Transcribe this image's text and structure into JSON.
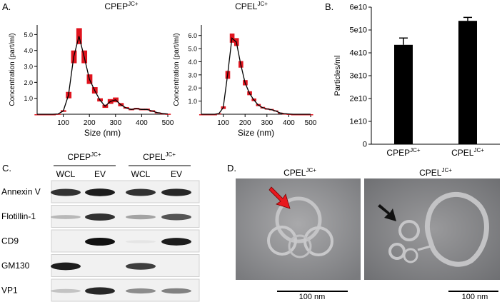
{
  "panel_labels": [
    "A.",
    "B.",
    "C.",
    "D."
  ],
  "chart_data": [
    {
      "type": "line",
      "title": "CPEP",
      "title_superscript": "JC+",
      "x_label": "Size (nm)",
      "y_label": "Concentration (part/ml)",
      "x": [
        0,
        20,
        40,
        60,
        80,
        100,
        120,
        140,
        160,
        180,
        200,
        220,
        240,
        260,
        280,
        300,
        320,
        340,
        360,
        380,
        400,
        420,
        440,
        460,
        480,
        500
      ],
      "values": [
        0,
        0,
        0,
        0,
        0.02,
        0.2,
        1.2,
        3.6,
        4.9,
        3.6,
        2.2,
        1.5,
        0.9,
        0.5,
        0.8,
        0.9,
        0.6,
        0.4,
        0.3,
        0.35,
        0.3,
        0.3,
        0.2,
        0.1,
        0.05,
        0.02
      ],
      "errors": [
        0,
        0,
        0,
        0,
        0.01,
        0.05,
        0.2,
        0.4,
        0.5,
        0.4,
        0.3,
        0.2,
        0.1,
        0.1,
        0.15,
        0.15,
        0.1,
        0.05,
        0.05,
        0.05,
        0.05,
        0.05,
        0.05,
        0.02,
        0.01,
        0.01
      ],
      "color": "#000000",
      "error_color": "#e0141e",
      "xlim": [
        0,
        500
      ],
      "xticks": [
        100,
        200,
        300,
        400,
        500
      ],
      "ylim": [
        0,
        5.6
      ],
      "yticks": [
        {
          "value": 1,
          "label": "1.0"
        },
        {
          "value": 2,
          "label": "2.0"
        },
        {
          "value": 3,
          "label": "3.0"
        },
        {
          "value": 4,
          "label": "4.0"
        },
        {
          "value": 5,
          "label": "5.0"
        }
      ]
    },
    {
      "type": "line",
      "title": "CPEL",
      "title_superscript": "JC+",
      "x_label": "Size (nm)",
      "y_label": "Concentration (part/ml)",
      "x": [
        0,
        20,
        40,
        60,
        80,
        100,
        120,
        140,
        160,
        180,
        200,
        220,
        240,
        260,
        280,
        300,
        320,
        340,
        360,
        380,
        400,
        420,
        440,
        460,
        480,
        500
      ],
      "values": [
        0,
        0,
        0,
        0,
        0.05,
        0.5,
        3.0,
        5.8,
        5.5,
        3.8,
        2.4,
        1.6,
        1.1,
        0.7,
        0.5,
        0.4,
        0.35,
        0.25,
        0.1,
        0.05,
        0.02,
        0,
        0,
        0,
        0,
        0
      ],
      "errors": [
        0,
        0,
        0,
        0,
        0.02,
        0.1,
        0.3,
        0.35,
        0.3,
        0.25,
        0.2,
        0.15,
        0.1,
        0.08,
        0.06,
        0.05,
        0.05,
        0.04,
        0.02,
        0.01,
        0.01,
        0,
        0,
        0,
        0,
        0
      ],
      "color": "#000000",
      "error_color": "#e0141e",
      "xlim": [
        0,
        500
      ],
      "xticks": [
        100,
        200,
        300,
        400,
        500
      ],
      "ylim": [
        0,
        6.8
      ],
      "yticks": [
        {
          "value": 1,
          "label": "1.0"
        },
        {
          "value": 2,
          "label": "2.0"
        },
        {
          "value": 3,
          "label": "3.0"
        },
        {
          "value": 4,
          "label": "4.0"
        },
        {
          "value": 5,
          "label": "5.0"
        },
        {
          "value": 6,
          "label": "6.0"
        }
      ]
    },
    {
      "type": "bar",
      "y_label": "Particles/ml",
      "categories": [
        "CPEP",
        "CPEL"
      ],
      "category_superscripts": [
        "JC+",
        "JC+"
      ],
      "values": [
        43500000000,
        54000000000
      ],
      "errors": [
        3000000000,
        1500000000
      ],
      "color": "#000000",
      "ylim": [
        0,
        60000000000
      ],
      "yticks": [
        0,
        {
          "value": 10000000000,
          "label": "1e10"
        },
        {
          "value": 20000000000,
          "label": "2e10"
        },
        {
          "value": 30000000000,
          "label": "3e10"
        },
        {
          "value": 40000000000,
          "label": "4e10"
        },
        {
          "value": 50000000000,
          "label": "5e10"
        },
        {
          "value": 60000000000,
          "label": "6e10"
        }
      ]
    }
  ],
  "blot": {
    "groups": [
      {
        "name": "CPEP",
        "superscript": "JC+"
      },
      {
        "name": "CPEL",
        "superscript": "JC+"
      }
    ],
    "lanes": [
      "WCL",
      "EV",
      "WCL",
      "EV"
    ],
    "rows": [
      "Annexin V",
      "Flotillin-1",
      "CD9",
      "GM130",
      "VP1"
    ]
  },
  "micrographs": [
    {
      "title": "CPEL",
      "title_superscript": "JC+",
      "scale_label": "100 nm"
    },
    {
      "title": "CPEL",
      "title_superscript": "JC+",
      "scale_label": "100 nm"
    }
  ]
}
